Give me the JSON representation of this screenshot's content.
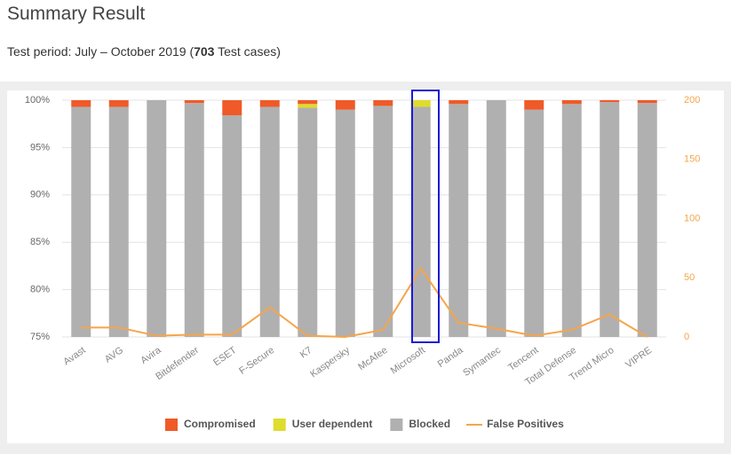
{
  "header": {
    "title": "Summary Result",
    "subtitle_parts": [
      "Test period: July – October 2019 (",
      "703",
      " Test cases)"
    ]
  },
  "chart_data": {
    "type": "bar",
    "categories": [
      "Avast",
      "AVG",
      "Avira",
      "Bitdefender",
      "ESET",
      "F-Secure",
      "K7",
      "Kaspersky",
      "McAfee",
      "Microsoft",
      "Panda",
      "Symantec",
      "Tencent",
      "Total Defense",
      "Trend Micro",
      "VIPRE"
    ],
    "series": [
      {
        "name": "Compromised",
        "color": "#f05a28",
        "values": [
          0.7,
          0.7,
          0,
          0.3,
          1.6,
          0.7,
          0.4,
          1.0,
          0.6,
          0,
          0.4,
          0,
          1.0,
          0.4,
          0.2,
          0.3
        ]
      },
      {
        "name": "User dependent",
        "color": "#dedc2c",
        "values": [
          0,
          0,
          0,
          0,
          0,
          0,
          0.4,
          0,
          0,
          0.7,
          0,
          0,
          0,
          0,
          0,
          0
        ]
      },
      {
        "name": "Blocked",
        "color": "#b0b0b0",
        "values": [
          99.3,
          99.3,
          100,
          99.7,
          98.4,
          99.3,
          99.2,
          99.0,
          99.4,
          99.3,
          99.6,
          100,
          99.0,
          99.6,
          99.8,
          99.7
        ]
      },
      {
        "name": "False Positives",
        "color": "#f5a54a",
        "type": "line",
        "axis": "y2",
        "values": [
          8,
          8,
          1,
          2,
          2,
          25,
          1,
          0,
          6,
          58,
          12,
          7,
          1,
          6,
          19,
          0
        ]
      }
    ],
    "ylim": [
      75,
      100
    ],
    "yticks": [
      {
        "value": 75,
        "label": "75%"
      },
      {
        "value": 80,
        "label": "80%"
      },
      {
        "value": 85,
        "label": "85%"
      },
      {
        "value": 90,
        "label": "90%"
      },
      {
        "value": 95,
        "label": "95%"
      },
      {
        "value": 100,
        "label": "100%"
      }
    ],
    "y2lim": [
      0,
      200
    ],
    "y2ticks": [
      0,
      50,
      100,
      150,
      200
    ],
    "grid": true
  }
}
